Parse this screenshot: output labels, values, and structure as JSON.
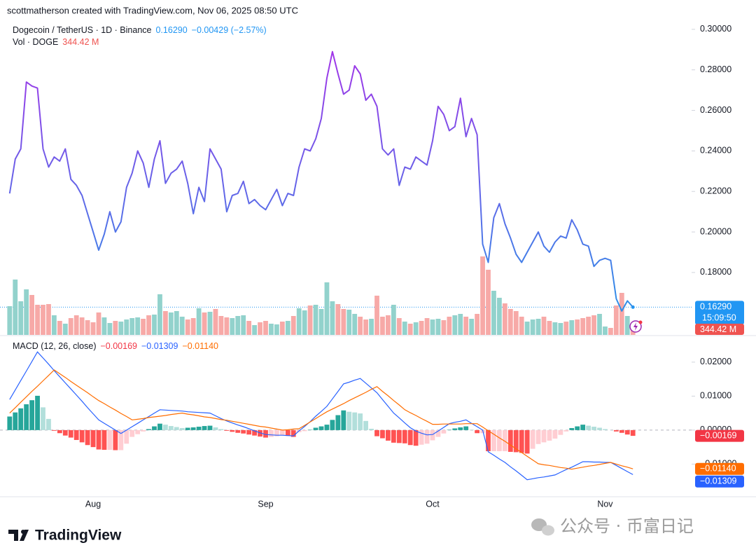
{
  "header": {
    "attribution": "scottmatherson created with TradingView.com, Nov 06, 2025 08:50 UTC",
    "symbol": "Dogecoin / TetherUS · 1D · Binance",
    "change": "−0.00429 (−2.57%)",
    "volume_label": "Vol · DOGE"
  },
  "footer": {
    "logo": "TradingView",
    "watermark": "公众号 · 币富日记"
  },
  "chart_data": [
    {
      "type": "line",
      "gradient": [
        "#a234e8",
        "#2f8fe8"
      ],
      "last_label": "0.16290",
      "countdown": "15:09:50",
      "last_color": "#2196f3",
      "ylim": [
        0.1492,
        0.3041
      ],
      "yticks": [
        {
          "value": 0.18,
          "label": "0.18000"
        },
        {
          "value": 0.2,
          "label": "0.20000"
        },
        {
          "value": 0.22,
          "label": "0.22000"
        },
        {
          "value": 0.24,
          "label": "0.24000"
        },
        {
          "value": 0.26,
          "label": "0.26000"
        },
        {
          "value": 0.28,
          "label": "0.28000"
        },
        {
          "value": 0.3,
          "label": "0.30000"
        }
      ],
      "values": [
        0.219,
        0.236,
        0.241,
        0.274,
        0.272,
        0.271,
        0.241,
        0.232,
        0.237,
        0.235,
        0.241,
        0.226,
        0.223,
        0.218,
        0.209,
        0.2,
        0.191,
        0.199,
        0.21,
        0.2,
        0.205,
        0.222,
        0.229,
        0.24,
        0.234,
        0.222,
        0.236,
        0.245,
        0.224,
        0.229,
        0.231,
        0.235,
        0.224,
        0.209,
        0.222,
        0.215,
        0.241,
        0.236,
        0.231,
        0.21,
        0.218,
        0.219,
        0.225,
        0.214,
        0.216,
        0.213,
        0.211,
        0.216,
        0.221,
        0.213,
        0.219,
        0.218,
        0.232,
        0.241,
        0.24,
        0.246,
        0.256,
        0.276,
        0.289,
        0.278,
        0.268,
        0.27,
        0.282,
        0.278,
        0.265,
        0.268,
        0.262,
        0.241,
        0.238,
        0.241,
        0.223,
        0.232,
        0.231,
        0.237,
        0.235,
        0.233,
        0.245,
        0.262,
        0.258,
        0.25,
        0.252,
        0.266,
        0.247,
        0.256,
        0.248,
        0.194,
        0.185,
        0.207,
        0.214,
        0.204,
        0.197,
        0.189,
        0.185,
        0.19,
        0.195,
        0.2,
        0.193,
        0.19,
        0.195,
        0.198,
        0.197,
        0.206,
        0.201,
        0.194,
        0.193,
        0.183,
        0.186,
        0.187,
        0.186,
        0.167,
        0.161,
        0.166,
        0.1629
      ]
    },
    {
      "type": "bar",
      "colors": [
        "#92d2cc",
        "#f7a9a7"
      ],
      "last_label": "344.42 M",
      "last_color": "#ef5350",
      "values": [
        1230,
        2370,
        1440,
        1950,
        1710,
        1290,
        1290,
        1320,
        840,
        600,
        480,
        720,
        840,
        750,
        630,
        540,
        960,
        750,
        510,
        600,
        570,
        660,
        720,
        750,
        690,
        840,
        870,
        1740,
        1020,
        960,
        1020,
        780,
        660,
        720,
        1140,
        960,
        990,
        1110,
        810,
        750,
        720,
        810,
        840,
        600,
        420,
        540,
        600,
        480,
        450,
        570,
        600,
        810,
        1140,
        1050,
        1260,
        1290,
        1110,
        2250,
        1440,
        1320,
        1110,
        1080,
        900,
        780,
        660,
        690,
        1680,
        780,
        840,
        1290,
        720,
        570,
        480,
        540,
        600,
        720,
        660,
        690,
        630,
        780,
        840,
        900,
        780,
        690,
        900,
        3360,
        2790,
        1890,
        1590,
        1350,
        1110,
        1020,
        780,
        570,
        660,
        690,
        780,
        600,
        540,
        510,
        570,
        630,
        660,
        720,
        780,
        840,
        900,
        360,
        300,
        1260,
        1800,
        810,
        344.42
      ]
    },
    {
      "type": "macd",
      "title": "MACD (12, 26, close)",
      "ylim": [
        -0.0194,
        0.0276
      ],
      "yticks": [
        {
          "value": -0.01,
          "label": "−0.01000"
        },
        {
          "value": 0,
          "label": "0.00000"
        },
        {
          "value": 0.01,
          "label": "0.01000"
        },
        {
          "value": 0.02,
          "label": "0.02000"
        }
      ],
      "categories": [
        null,
        null,
        null,
        null,
        null,
        null,
        null,
        null,
        null,
        null,
        null,
        null,
        null,
        null,
        null,
        "Aug",
        null,
        null,
        null,
        null,
        null,
        null,
        null,
        null,
        null,
        null,
        null,
        null,
        null,
        null,
        null,
        null,
        null,
        null,
        null,
        null,
        null,
        null,
        null,
        null,
        null,
        null,
        null,
        null,
        null,
        null,
        "Sep",
        null,
        null,
        null,
        null,
        null,
        null,
        null,
        null,
        null,
        null,
        null,
        null,
        null,
        null,
        null,
        null,
        null,
        null,
        null,
        null,
        null,
        null,
        null,
        null,
        null,
        null,
        null,
        null,
        null,
        "Oct",
        null,
        null,
        null,
        null,
        null,
        null,
        null,
        null,
        null,
        null,
        null,
        null,
        null,
        null,
        null,
        null,
        null,
        null,
        null,
        null,
        null,
        null,
        null,
        null,
        null,
        null,
        null,
        null,
        null,
        null,
        "Nov",
        null,
        null,
        null,
        null,
        null
      ],
      "series": [
        {
          "kind": "histogram",
          "colors": [
            "#26a69a",
            "#b2dfdb",
            "#ff5252",
            "#ffcdd2"
          ],
          "label_color": "#f23645",
          "last_label": "−0.00169",
          "values": [
            0.004,
            0.0052,
            0.0064,
            0.0076,
            0.0088,
            0.0101,
            0.0067,
            0.0033,
            -0.0002,
            -0.0009,
            -0.0016,
            -0.0022,
            -0.0029,
            -0.0036,
            -0.0044,
            -0.005,
            -0.0057,
            -0.0058,
            -0.0058,
            -0.0059,
            -0.0059,
            -0.004,
            -0.002,
            -0.0012,
            -0.0004,
            0.0003,
            0.0011,
            0.0019,
            0.0016,
            0.0012,
            0.0009,
            0.0006,
            0.0007,
            0.0008,
            0.001,
            0.0012,
            0.0013,
            0.0008,
            0.0003,
            -0.0002,
            -0.0005,
            -0.0008,
            -0.001,
            -0.0013,
            -0.0016,
            -0.0019,
            -0.0022,
            -0.002,
            -0.0018,
            -0.0015,
            -0.0017,
            -0.002,
            -0.0006,
            -0.0003,
            0.0001,
            0.0007,
            0.0011,
            0.0016,
            0.003,
            0.0044,
            0.0058,
            0.0054,
            0.0052,
            0.0049,
            0.0027,
            0.0004,
            -0.0018,
            -0.0024,
            -0.0031,
            -0.0037,
            -0.0038,
            -0.0039,
            -0.0044,
            -0.0046,
            -0.0043,
            -0.004,
            -0.003,
            -0.002,
            -0.001,
            0.0001,
            0.0005,
            0.0008,
            0.0011,
            0.0001,
            -0.0009,
            -0.0009,
            -0.0062,
            -0.0062,
            -0.0062,
            -0.0062,
            -0.0064,
            -0.0065,
            -0.0067,
            -0.0069,
            -0.0055,
            -0.0041,
            -0.0036,
            -0.0031,
            -0.0025,
            -0.0014,
            -0.0004,
            0.0006,
            0.0011,
            0.0016,
            0.0013,
            0.001,
            0.0007,
            0.0003,
            0.0,
            -0.0004,
            -0.0008,
            -0.0013,
            -0.00169
          ]
        },
        {
          "kind": "line",
          "color": "#2962ff",
          "last_label": "−0.01309",
          "values": [
            0.009,
            0.0118,
            0.0146,
            0.0174,
            0.0202,
            0.023,
            0.0212,
            0.0194,
            0.0175,
            0.0157,
            0.0139,
            0.0121,
            0.0103,
            0.0085,
            0.0066,
            0.0048,
            0.003,
            0.002,
            0.001,
            0.0,
            -0.001,
            0.0,
            0.001,
            0.002,
            0.003,
            0.004,
            0.005,
            0.006,
            0.0059,
            0.0058,
            0.0057,
            0.0056,
            0.0054,
            0.0053,
            0.0052,
            0.0051,
            0.005,
            0.0042,
            0.0034,
            0.0027,
            0.0021,
            0.0015,
            0.001,
            0.0004,
            -0.0002,
            -0.0008,
            -0.0013,
            -0.0014,
            -0.0015,
            -0.0015,
            -0.0016,
            -0.0017,
            -0.0002,
            0.0011,
            0.0025,
            0.0041,
            0.0055,
            0.007,
            0.0092,
            0.0114,
            0.0136,
            0.0141,
            0.0147,
            0.0152,
            0.0138,
            0.0124,
            0.011,
            0.009,
            0.007,
            0.005,
            0.0036,
            0.0021,
            0.0007,
            -0.0003,
            -0.0009,
            -0.0014,
            -0.0013,
            -0.0003,
            0.0008,
            0.0019,
            0.0023,
            0.0026,
            0.003,
            0.002,
            0.001,
            0.0,
            -0.0064,
            -0.0074,
            -0.0085,
            -0.0095,
            -0.0108,
            -0.012,
            -0.0133,
            -0.0146,
            -0.0143,
            -0.014,
            -0.0138,
            -0.0135,
            -0.0132,
            -0.0124,
            -0.0116,
            -0.0109,
            -0.0101,
            -0.0093,
            -0.0093,
            -0.0094,
            -0.0094,
            -0.0095,
            -0.0095,
            -0.0104,
            -0.0113,
            -0.0122,
            -0.01309
          ]
        },
        {
          "kind": "line",
          "color": "#ff6d00",
          "last_label": "−0.01140",
          "values": [
            0.005,
            0.0066,
            0.0082,
            0.0098,
            0.0114,
            0.0129,
            0.0145,
            0.0161,
            0.0177,
            0.0166,
            0.0155,
            0.0143,
            0.0132,
            0.0121,
            0.011,
            0.0098,
            0.0087,
            0.0078,
            0.0068,
            0.0059,
            0.0049,
            0.004,
            0.003,
            0.0032,
            0.0034,
            0.0037,
            0.0039,
            0.0041,
            0.0043,
            0.0046,
            0.0048,
            0.005,
            0.0047,
            0.0045,
            0.0042,
            0.0039,
            0.0037,
            0.0034,
            0.0031,
            0.0029,
            0.0026,
            0.0023,
            0.002,
            0.0017,
            0.0014,
            0.0011,
            0.0009,
            0.0006,
            0.0003,
            0.0,
            0.0001,
            0.0003,
            0.0004,
            0.0014,
            0.0024,
            0.0034,
            0.0044,
            0.0054,
            0.0062,
            0.007,
            0.0078,
            0.0087,
            0.0095,
            0.0103,
            0.0111,
            0.012,
            0.0128,
            0.0114,
            0.0101,
            0.0087,
            0.0074,
            0.006,
            0.0051,
            0.0043,
            0.0034,
            0.0026,
            0.0017,
            0.0017,
            0.0018,
            0.0018,
            0.0018,
            0.0018,
            0.0019,
            0.0019,
            0.0019,
            0.0009,
            -0.0002,
            -0.0012,
            -0.0023,
            -0.0033,
            -0.0044,
            -0.0055,
            -0.0066,
            -0.0077,
            -0.0088,
            -0.0099,
            -0.0102,
            -0.0104,
            -0.0107,
            -0.011,
            -0.0112,
            -0.0115,
            -0.0112,
            -0.0109,
            -0.0106,
            -0.0104,
            -0.0101,
            -0.0098,
            -0.0095,
            -0.01,
            -0.0105,
            -0.0109,
            -0.0114
          ]
        }
      ]
    }
  ]
}
